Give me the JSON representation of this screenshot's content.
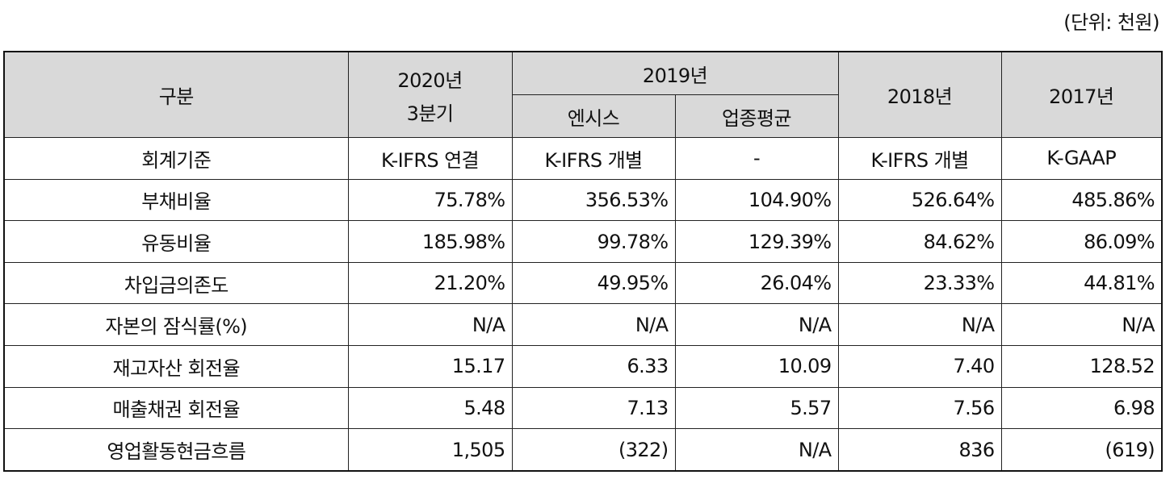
{
  "unit_note": "(단위: 천원)",
  "header": {
    "category": "구분",
    "col_2020_line1": "2020년",
    "col_2020_line2": "3분기",
    "col_2019": "2019년",
    "col_2019_sub1": "엔시스",
    "col_2019_sub2": "업종평균",
    "col_2018": "2018년",
    "col_2017": "2017년"
  },
  "rows": [
    {
      "label": "회계기준",
      "v2020": "K-IFRS 연결",
      "v2019a": "K-IFRS 개별",
      "v2019b": "-",
      "v2018": "K-IFRS 개별",
      "v2017": "K-GAAP"
    },
    {
      "label": "부채비율",
      "v2020": "75.78%",
      "v2019a": "356.53%",
      "v2019b": "104.90%",
      "v2018": "526.64%",
      "v2017": "485.86%"
    },
    {
      "label": "유동비율",
      "v2020": "185.98%",
      "v2019a": "99.78%",
      "v2019b": "129.39%",
      "v2018": "84.62%",
      "v2017": "86.09%"
    },
    {
      "label": "차입금의존도",
      "v2020": "21.20%",
      "v2019a": "49.95%",
      "v2019b": "26.04%",
      "v2018": "23.33%",
      "v2017": "44.81%"
    },
    {
      "label": "자본의 잠식률(%)",
      "v2020": "N/A",
      "v2019a": "N/A",
      "v2019b": "N/A",
      "v2018": "N/A",
      "v2017": "N/A"
    },
    {
      "label": "재고자산 회전율",
      "v2020": "15.17",
      "v2019a": "6.33",
      "v2019b": "10.09",
      "v2018": "7.40",
      "v2017": "128.52"
    },
    {
      "label": "매출채권 회전율",
      "v2020": "5.48",
      "v2019a": "7.13",
      "v2019b": "5.57",
      "v2018": "7.56",
      "v2017": "6.98"
    },
    {
      "label": "영업활동현금흐름",
      "v2020": "1,505",
      "v2019a": "(322)",
      "v2019b": "N/A",
      "v2018": "836",
      "v2017": "(619)"
    }
  ]
}
